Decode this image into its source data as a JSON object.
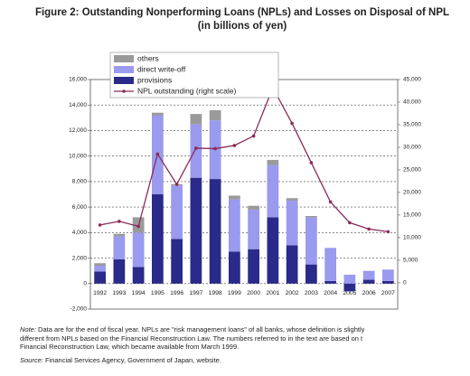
{
  "chart_data": {
    "type": "bar",
    "title": "Figure 2: Outstanding Nonperforming Loans (NPLs) and Losses on Disposal of NPL",
    "subtitle": "(in billions of yen)",
    "categories": [
      "1992",
      "1993",
      "1994",
      "1995",
      "1996",
      "1997",
      "1998",
      "1999",
      "2000",
      "2001",
      "2002",
      "2003",
      "2004",
      "2005",
      "2006",
      "2007"
    ],
    "series": [
      {
        "name": "provisions",
        "type": "bar",
        "color": "#2a2a8a",
        "values": [
          950,
          1900,
          1300,
          7000,
          3500,
          8300,
          8200,
          2500,
          2700,
          5200,
          3000,
          1500,
          200,
          -600,
          300,
          200
        ]
      },
      {
        "name": "direct write-off",
        "type": "bar",
        "color": "#9a9aee",
        "values": [
          450,
          1800,
          2700,
          6200,
          4200,
          4200,
          4600,
          4100,
          3100,
          4100,
          3500,
          3700,
          2600,
          700,
          700,
          900
        ]
      },
      {
        "name": "others",
        "type": "bar",
        "color": "#9a9a9a",
        "values": [
          200,
          200,
          1200,
          200,
          100,
          800,
          800,
          300,
          300,
          400,
          200,
          100,
          0,
          0,
          0,
          0
        ]
      },
      {
        "name": "NPL outstanding (right scale)",
        "type": "line",
        "axis": "y2",
        "color": "#8b2a5a",
        "values": [
          12800,
          13600,
          12500,
          28500,
          21800,
          29800,
          29700,
          30400,
          32500,
          43200,
          35300,
          26600,
          17900,
          13300,
          11900,
          11300
        ]
      }
    ],
    "ylim": [
      -2000,
      16000
    ],
    "yticks": [
      {
        "value": -2000,
        "label": "-2,000"
      },
      0,
      {
        "value": 2000,
        "label": "2,000"
      },
      {
        "value": 4000,
        "label": "4,000"
      },
      {
        "value": 6000,
        "label": "6,000"
      },
      {
        "value": 8000,
        "label": "8,000"
      },
      {
        "value": 10000,
        "label": "10,000"
      },
      {
        "value": 12000,
        "label": "12,000"
      },
      {
        "value": 14000,
        "label": "14,000"
      },
      {
        "value": 16000,
        "label": "16,000"
      }
    ],
    "y2lim": [
      -5833,
      45000
    ],
    "y2ticks": [
      0,
      {
        "value": 5000,
        "label": "5,000"
      },
      {
        "value": 10000,
        "label": "10,000"
      },
      {
        "value": 15000,
        "label": "15,000"
      },
      {
        "value": 20000,
        "label": "20,000"
      },
      {
        "value": 25000,
        "label": "25,000"
      },
      {
        "value": 30000,
        "label": "30,000"
      },
      {
        "value": 35000,
        "label": "35,000"
      },
      {
        "value": 40000,
        "label": "40,000"
      },
      {
        "value": 45000,
        "label": "45,000"
      }
    ],
    "grid": true,
    "legend": "top-left",
    "note_label": "Note:",
    "note_lines": [
      "Data are for the end of fiscal year. NPLs are \"risk management loans\" of all banks, whose definition is slightly",
      "different from NPLs based on the Financial Reconstruction Law. The numbers referred to in the text are based on t",
      "Financial Reconstruction Law, which became available from March 1999."
    ],
    "source_label": "Source:",
    "source": "Financial Services Agency, Government of Japan, website."
  }
}
